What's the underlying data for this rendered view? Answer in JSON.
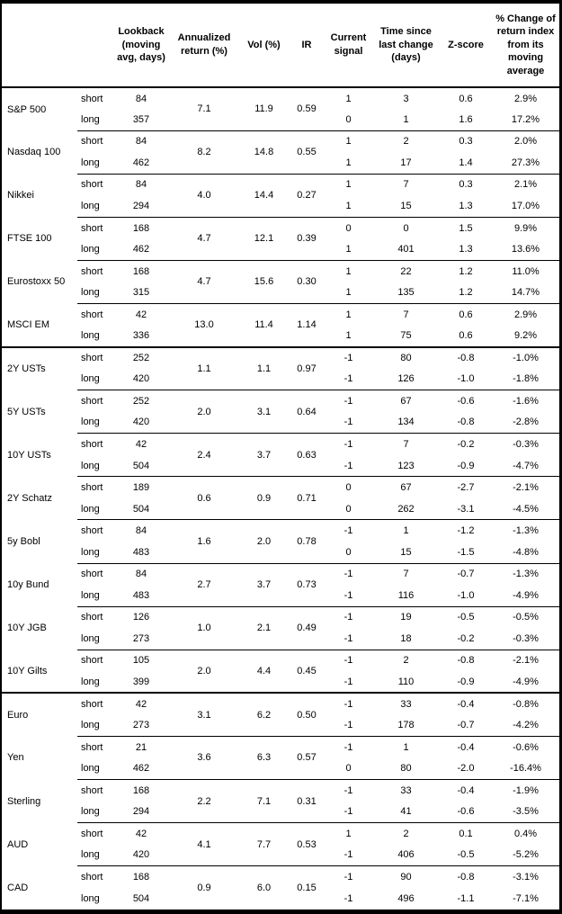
{
  "page": {
    "background_color": "#ffffff",
    "border_color": "#000000",
    "text_color": "#000000"
  },
  "table": {
    "column_headers": [
      {
        "key": "instrument",
        "label": ""
      },
      {
        "key": "leg",
        "label": ""
      },
      {
        "key": "lookback",
        "label": "Lookback (moving avg, days)"
      },
      {
        "key": "annualized_return",
        "label": "Annualized return (%)"
      },
      {
        "key": "vol",
        "label": "Vol (%)"
      },
      {
        "key": "ir",
        "label": "IR"
      },
      {
        "key": "current_signal",
        "label": "Current signal"
      },
      {
        "key": "time_since_change",
        "label": "Time since last change (days)"
      },
      {
        "key": "z_score",
        "label": "Z-score"
      },
      {
        "key": "pct_change",
        "label": "% Change of return index from its moving average"
      }
    ],
    "groups": [
      {
        "instruments": [
          {
            "name": "S&P 500",
            "annualized_return": "7.1",
            "vol": "11.9",
            "ir": "0.59",
            "rows": [
              {
                "leg": "short",
                "lookback": "84",
                "signal": "1",
                "days": "3",
                "z": "0.6",
                "pct": "2.9%"
              },
              {
                "leg": "long",
                "lookback": "357",
                "signal": "0",
                "days": "1",
                "z": "1.6",
                "pct": "17.2%"
              }
            ]
          },
          {
            "name": "Nasdaq 100",
            "annualized_return": "8.2",
            "vol": "14.8",
            "ir": "0.55",
            "rows": [
              {
                "leg": "short",
                "lookback": "84",
                "signal": "1",
                "days": "2",
                "z": "0.3",
                "pct": "2.0%"
              },
              {
                "leg": "long",
                "lookback": "462",
                "signal": "1",
                "days": "17",
                "z": "1.4",
                "pct": "27.3%"
              }
            ]
          },
          {
            "name": "Nikkei",
            "annualized_return": "4.0",
            "vol": "14.4",
            "ir": "0.27",
            "rows": [
              {
                "leg": "short",
                "lookback": "84",
                "signal": "1",
                "days": "7",
                "z": "0.3",
                "pct": "2.1%"
              },
              {
                "leg": "long",
                "lookback": "294",
                "signal": "1",
                "days": "15",
                "z": "1.3",
                "pct": "17.0%"
              }
            ]
          },
          {
            "name": "FTSE 100",
            "annualized_return": "4.7",
            "vol": "12.1",
            "ir": "0.39",
            "rows": [
              {
                "leg": "short",
                "lookback": "168",
                "signal": "0",
                "days": "0",
                "z": "1.5",
                "pct": "9.9%"
              },
              {
                "leg": "long",
                "lookback": "462",
                "signal": "1",
                "days": "401",
                "z": "1.3",
                "pct": "13.6%"
              }
            ]
          },
          {
            "name": "Eurostoxx 50",
            "annualized_return": "4.7",
            "vol": "15.6",
            "ir": "0.30",
            "rows": [
              {
                "leg": "short",
                "lookback": "168",
                "signal": "1",
                "days": "22",
                "z": "1.2",
                "pct": "11.0%"
              },
              {
                "leg": "long",
                "lookback": "315",
                "signal": "1",
                "days": "135",
                "z": "1.2",
                "pct": "14.7%"
              }
            ]
          },
          {
            "name": "MSCI EM",
            "annualized_return": "13.0",
            "vol": "11.4",
            "ir": "1.14",
            "rows": [
              {
                "leg": "short",
                "lookback": "42",
                "signal": "1",
                "days": "7",
                "z": "0.6",
                "pct": "2.9%"
              },
              {
                "leg": "long",
                "lookback": "336",
                "signal": "1",
                "days": "75",
                "z": "0.6",
                "pct": "9.2%"
              }
            ]
          }
        ]
      },
      {
        "instruments": [
          {
            "name": "2Y USTs",
            "annualized_return": "1.1",
            "vol": "1.1",
            "ir": "0.97",
            "rows": [
              {
                "leg": "short",
                "lookback": "252",
                "signal": "-1",
                "days": "80",
                "z": "-0.8",
                "pct": "-1.0%"
              },
              {
                "leg": "long",
                "lookback": "420",
                "signal": "-1",
                "days": "126",
                "z": "-1.0",
                "pct": "-1.8%"
              }
            ]
          },
          {
            "name": "5Y USTs",
            "annualized_return": "2.0",
            "vol": "3.1",
            "ir": "0.64",
            "rows": [
              {
                "leg": "short",
                "lookback": "252",
                "signal": "-1",
                "days": "67",
                "z": "-0.6",
                "pct": "-1.6%"
              },
              {
                "leg": "long",
                "lookback": "420",
                "signal": "-1",
                "days": "134",
                "z": "-0.8",
                "pct": "-2.8%"
              }
            ]
          },
          {
            "name": "10Y USTs",
            "annualized_return": "2.4",
            "vol": "3.7",
            "ir": "0.63",
            "rows": [
              {
                "leg": "short",
                "lookback": "42",
                "signal": "-1",
                "days": "7",
                "z": "-0.2",
                "pct": "-0.3%"
              },
              {
                "leg": "long",
                "lookback": "504",
                "signal": "-1",
                "days": "123",
                "z": "-0.9",
                "pct": "-4.7%"
              }
            ]
          },
          {
            "name": "2Y Schatz",
            "annualized_return": "0.6",
            "vol": "0.9",
            "ir": "0.71",
            "rows": [
              {
                "leg": "short",
                "lookback": "189",
                "signal": "0",
                "days": "67",
                "z": "-2.7",
                "pct": "-2.1%"
              },
              {
                "leg": "long",
                "lookback": "504",
                "signal": "0",
                "days": "262",
                "z": "-3.1",
                "pct": "-4.5%"
              }
            ]
          },
          {
            "name": "5y Bobl",
            "annualized_return": "1.6",
            "vol": "2.0",
            "ir": "0.78",
            "rows": [
              {
                "leg": "short",
                "lookback": "84",
                "signal": "-1",
                "days": "1",
                "z": "-1.2",
                "pct": "-1.3%"
              },
              {
                "leg": "long",
                "lookback": "483",
                "signal": "0",
                "days": "15",
                "z": "-1.5",
                "pct": "-4.8%"
              }
            ]
          },
          {
            "name": "10y Bund",
            "annualized_return": "2.7",
            "vol": "3.7",
            "ir": "0.73",
            "rows": [
              {
                "leg": "short",
                "lookback": "84",
                "signal": "-1",
                "days": "7",
                "z": "-0.7",
                "pct": "-1.3%"
              },
              {
                "leg": "long",
                "lookback": "483",
                "signal": "-1",
                "days": "116",
                "z": "-1.0",
                "pct": "-4.9%"
              }
            ]
          },
          {
            "name": "10Y JGB",
            "annualized_return": "1.0",
            "vol": "2.1",
            "ir": "0.49",
            "rows": [
              {
                "leg": "short",
                "lookback": "126",
                "signal": "-1",
                "days": "19",
                "z": "-0.5",
                "pct": "-0.5%"
              },
              {
                "leg": "long",
                "lookback": "273",
                "signal": "-1",
                "days": "18",
                "z": "-0.2",
                "pct": "-0.3%"
              }
            ]
          },
          {
            "name": "10Y Gilts",
            "annualized_return": "2.0",
            "vol": "4.4",
            "ir": "0.45",
            "rows": [
              {
                "leg": "short",
                "lookback": "105",
                "signal": "-1",
                "days": "2",
                "z": "-0.8",
                "pct": "-2.1%"
              },
              {
                "leg": "long",
                "lookback": "399",
                "signal": "-1",
                "days": "110",
                "z": "-0.9",
                "pct": "-4.9%"
              }
            ]
          }
        ]
      },
      {
        "instruments": [
          {
            "name": "Euro",
            "annualized_return": "3.1",
            "vol": "6.2",
            "ir": "0.50",
            "rows": [
              {
                "leg": "short",
                "lookback": "42",
                "signal": "-1",
                "days": "33",
                "z": "-0.4",
                "pct": "-0.8%"
              },
              {
                "leg": "long",
                "lookback": "273",
                "signal": "-1",
                "days": "178",
                "z": "-0.7",
                "pct": "-4.2%"
              }
            ]
          },
          {
            "name": "Yen",
            "annualized_return": "3.6",
            "vol": "6.3",
            "ir": "0.57",
            "rows": [
              {
                "leg": "short",
                "lookback": "21",
                "signal": "-1",
                "days": "1",
                "z": "-0.4",
                "pct": "-0.6%"
              },
              {
                "leg": "long",
                "lookback": "462",
                "signal": "0",
                "days": "80",
                "z": "-2.0",
                "pct": "-16.4%"
              }
            ]
          },
          {
            "name": "Sterling",
            "annualized_return": "2.2",
            "vol": "7.1",
            "ir": "0.31",
            "rows": [
              {
                "leg": "short",
                "lookback": "168",
                "signal": "-1",
                "days": "33",
                "z": "-0.4",
                "pct": "-1.9%"
              },
              {
                "leg": "long",
                "lookback": "294",
                "signal": "-1",
                "days": "41",
                "z": "-0.6",
                "pct": "-3.5%"
              }
            ]
          },
          {
            "name": "AUD",
            "annualized_return": "4.1",
            "vol": "7.7",
            "ir": "0.53",
            "rows": [
              {
                "leg": "short",
                "lookback": "42",
                "signal": "1",
                "days": "2",
                "z": "0.1",
                "pct": "0.4%"
              },
              {
                "leg": "long",
                "lookback": "420",
                "signal": "-1",
                "days": "406",
                "z": "-0.5",
                "pct": "-5.2%"
              }
            ]
          },
          {
            "name": "CAD",
            "annualized_return": "0.9",
            "vol": "6.0",
            "ir": "0.15",
            "rows": [
              {
                "leg": "short",
                "lookback": "168",
                "signal": "-1",
                "days": "90",
                "z": "-0.8",
                "pct": "-3.1%"
              },
              {
                "leg": "long",
                "lookback": "504",
                "signal": "-1",
                "days": "496",
                "z": "-1.1",
                "pct": "-7.1%"
              }
            ]
          }
        ]
      }
    ]
  }
}
